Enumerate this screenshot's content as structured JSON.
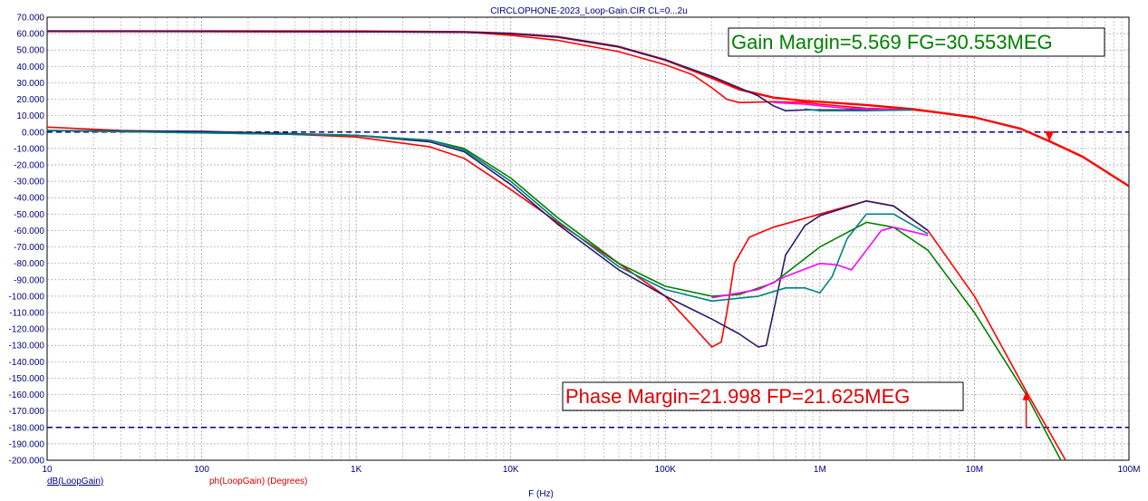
{
  "chart_data": {
    "type": "line",
    "title": "CIRCLOPHONE-2023_Loop-Gain.CIR CL=0...2u",
    "xlabel": "F (Hz)",
    "x_scale": "log",
    "xlim": [
      10,
      100000000
    ],
    "ylim": [
      -200,
      70
    ],
    "x_ticks": [
      "10",
      "100",
      "1K",
      "10K",
      "100K",
      "1M",
      "10M",
      "100M"
    ],
    "y_ticks": [
      "70.000",
      "60.000",
      "50.000",
      "40.000",
      "30.000",
      "20.000",
      "10.000",
      "0.000",
      "-10.000",
      "-20.000",
      "-30.000",
      "-40.000",
      "-50.000",
      "-60.000",
      "-70.000",
      "-80.000",
      "-90.000",
      "-100.000",
      "-110.000",
      "-120.000",
      "-130.000",
      "-140.000",
      "-150.000",
      "-160.000",
      "-170.000",
      "-180.000",
      "-190.000",
      "-200.000"
    ],
    "grid": true,
    "legend": {
      "db": "dB(LoopGain)",
      "ph": "ph(LoopGain) (Degrees)"
    },
    "reference_lines": [
      0,
      -180
    ],
    "annotations": {
      "gain_margin": "Gain Margin=5.569 FG=30.553MEG",
      "phase_margin": "Phase Margin=21.998 FP=21.625MEG"
    },
    "markers": [
      {
        "type": "down-arrow",
        "x": 30553000,
        "y": -5.6
      },
      {
        "type": "up-arrow",
        "x": 21625000,
        "y": -180
      }
    ],
    "magnitude_series": [
      {
        "color": "#ff0000",
        "points": [
          [
            10,
            61.5
          ],
          [
            100,
            61.5
          ],
          [
            1000,
            61.4
          ],
          [
            5000,
            61
          ],
          [
            10000,
            60
          ],
          [
            20000,
            58
          ],
          [
            50000,
            52
          ],
          [
            100000,
            44
          ],
          [
            200000,
            33
          ],
          [
            300000,
            26
          ],
          [
            500000,
            21
          ],
          [
            800000,
            19
          ],
          [
            1000000,
            18.5
          ],
          [
            2000000,
            16.5
          ],
          [
            4000000,
            14
          ],
          [
            10000000,
            9
          ],
          [
            20000000,
            2
          ],
          [
            30553000,
            -5.6
          ],
          [
            50000000,
            -15
          ],
          [
            100000000,
            -33
          ]
        ]
      },
      {
        "color": "#ff0000",
        "points": [
          [
            10,
            61.5
          ],
          [
            5000,
            61
          ],
          [
            10000,
            59
          ],
          [
            20000,
            56
          ],
          [
            50000,
            49
          ],
          [
            100000,
            41
          ],
          [
            150000,
            35
          ],
          [
            200000,
            27
          ],
          [
            250000,
            20
          ],
          [
            300000,
            18
          ],
          [
            500000,
            18.5
          ],
          [
            800000,
            18
          ],
          [
            1000000,
            17
          ],
          [
            2000000,
            14.5
          ],
          [
            4000000,
            13.5
          ],
          [
            7000000,
            11
          ]
        ]
      },
      {
        "color": "#2e1a6e",
        "points": [
          [
            10,
            61.5
          ],
          [
            5000,
            61
          ],
          [
            10000,
            60
          ],
          [
            20000,
            58
          ],
          [
            50000,
            52
          ],
          [
            100000,
            44
          ],
          [
            200000,
            34
          ],
          [
            300000,
            27
          ],
          [
            400000,
            22
          ],
          [
            500000,
            16
          ],
          [
            600000,
            13
          ],
          [
            800000,
            13.5
          ],
          [
            1000000,
            13.5
          ],
          [
            2000000,
            13.5
          ],
          [
            4000000,
            13.5
          ]
        ]
      },
      {
        "color": "#ff00ff",
        "points": [
          [
            500000,
            18
          ],
          [
            800000,
            17
          ],
          [
            1000000,
            16
          ],
          [
            1500000,
            14.5
          ],
          [
            2000000,
            14
          ],
          [
            4000000,
            13.5
          ]
        ]
      },
      {
        "color": "#008080",
        "points": [
          [
            800000,
            14
          ],
          [
            1000000,
            13
          ],
          [
            2000000,
            13
          ],
          [
            4000000,
            13.5
          ]
        ]
      }
    ],
    "phase_series": [
      {
        "color": "#ff0000",
        "points": [
          [
            10,
            3
          ],
          [
            30,
            1
          ],
          [
            100,
            0
          ],
          [
            300,
            -1
          ],
          [
            1000,
            -3
          ],
          [
            3000,
            -9
          ],
          [
            5000,
            -16
          ],
          [
            10000,
            -35
          ],
          [
            20000,
            -55
          ],
          [
            50000,
            -80
          ],
          [
            100000,
            -100
          ],
          [
            150000,
            -118
          ],
          [
            200000,
            -131
          ],
          [
            230000,
            -128
          ],
          [
            250000,
            -110
          ],
          [
            280000,
            -80
          ],
          [
            350000,
            -64
          ],
          [
            500000,
            -58
          ],
          [
            1000000,
            -50
          ],
          [
            2000000,
            -42
          ],
          [
            3000000,
            -45
          ],
          [
            5000000,
            -60
          ],
          [
            10000000,
            -100
          ],
          [
            21625000,
            -158
          ],
          [
            50000000,
            -218
          ]
        ]
      },
      {
        "color": "#2e1a6e",
        "points": [
          [
            10,
            1
          ],
          [
            100,
            0.5
          ],
          [
            1000,
            -2
          ],
          [
            3000,
            -6
          ],
          [
            5000,
            -12
          ],
          [
            10000,
            -32
          ],
          [
            20000,
            -56
          ],
          [
            50000,
            -84
          ],
          [
            100000,
            -100
          ],
          [
            200000,
            -114
          ],
          [
            300000,
            -123
          ],
          [
            400000,
            -131
          ],
          [
            450000,
            -130
          ],
          [
            500000,
            -110
          ],
          [
            600000,
            -75
          ],
          [
            800000,
            -57
          ],
          [
            1000000,
            -51
          ],
          [
            2000000,
            -42
          ],
          [
            3000000,
            -45
          ],
          [
            5000000,
            -60
          ]
        ]
      },
      {
        "color": "#008000",
        "points": [
          [
            10,
            1
          ],
          [
            1000,
            -2
          ],
          [
            3000,
            -5
          ],
          [
            5000,
            -10
          ],
          [
            10000,
            -28
          ],
          [
            20000,
            -52
          ],
          [
            50000,
            -80
          ],
          [
            100000,
            -94
          ],
          [
            200000,
            -100
          ],
          [
            300000,
            -99
          ],
          [
            500000,
            -92
          ],
          [
            1000000,
            -70
          ],
          [
            2000000,
            -55
          ],
          [
            3000000,
            -58
          ],
          [
            5000000,
            -72
          ],
          [
            10000000,
            -110
          ],
          [
            21625000,
            -160
          ],
          [
            50000000,
            -225
          ]
        ]
      },
      {
        "color": "#008080",
        "points": [
          [
            10,
            1
          ],
          [
            1000,
            -2
          ],
          [
            3000,
            -5
          ],
          [
            5000,
            -11
          ],
          [
            10000,
            -30
          ],
          [
            20000,
            -54
          ],
          [
            50000,
            -82
          ],
          [
            100000,
            -96
          ],
          [
            200000,
            -103
          ],
          [
            400000,
            -100
          ],
          [
            600000,
            -95
          ],
          [
            800000,
            -95
          ],
          [
            1000000,
            -98
          ],
          [
            1200000,
            -88
          ],
          [
            1500000,
            -65
          ],
          [
            2000000,
            -50
          ],
          [
            3000000,
            -50
          ],
          [
            5000000,
            -62
          ]
        ]
      },
      {
        "color": "#ff00ff",
        "points": [
          [
            200000,
            -101
          ],
          [
            400000,
            -96
          ],
          [
            600000,
            -88
          ],
          [
            1000000,
            -80
          ],
          [
            1300000,
            -81
          ],
          [
            1600000,
            -84
          ],
          [
            2000000,
            -72
          ],
          [
            2500000,
            -60
          ],
          [
            3000000,
            -58
          ],
          [
            5000000,
            -63
          ]
        ]
      }
    ]
  }
}
